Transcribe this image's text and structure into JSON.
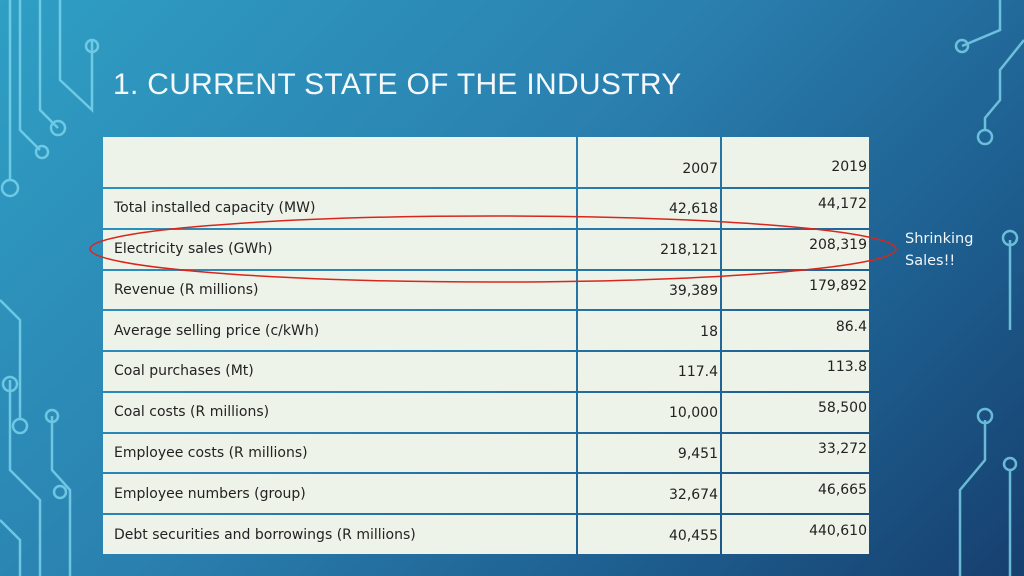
{
  "title": "1. CURRENT STATE OF THE INDUSTRY",
  "table": {
    "columns": [
      "2007",
      "2019"
    ],
    "rows": [
      {
        "label": "Total installed capacity (MW)",
        "values": [
          "42,618",
          "44,172"
        ]
      },
      {
        "label": "Electricity sales (GWh)",
        "values": [
          "218,121",
          "208,319"
        ]
      },
      {
        "label": "Revenue (R millions)",
        "values": [
          "39,389",
          "179,892"
        ]
      },
      {
        "label": "Average selling price (c/kWh)",
        "values": [
          "18",
          "86.4"
        ]
      },
      {
        "label": "Coal purchases (Mt)",
        "values": [
          "117.4",
          "113.8"
        ]
      },
      {
        "label": "Coal costs (R millions)",
        "values": [
          "10,000",
          "58,500"
        ]
      },
      {
        "label": "Employee costs (R millions)",
        "values": [
          "9,451",
          "33,272"
        ]
      },
      {
        "label": "Employee numbers (group)",
        "values": [
          "32,674",
          "46,665"
        ]
      },
      {
        "label": "Debt securities and borrowings (R millions)",
        "values": [
          "40,455",
          "440,610"
        ]
      }
    ]
  },
  "annotation": "Shrinking Sales!!"
}
